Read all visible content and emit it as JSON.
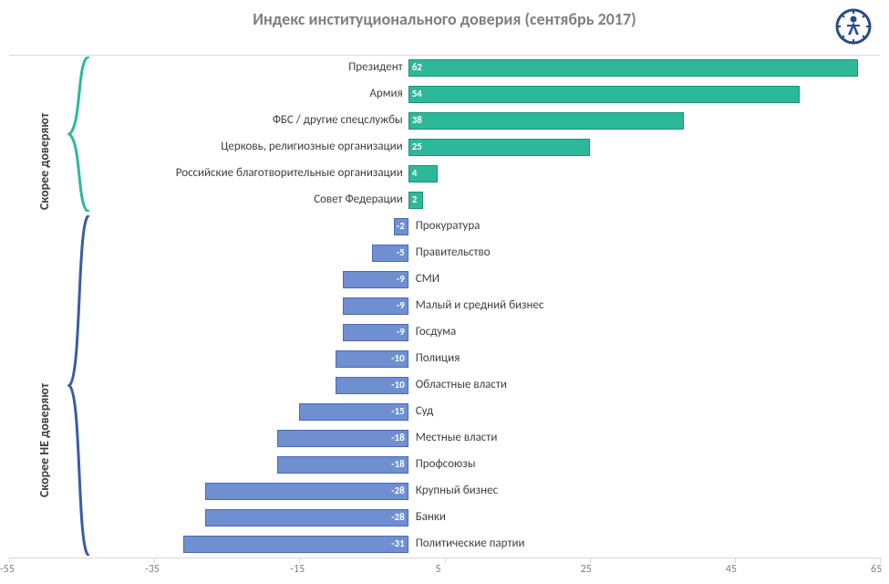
{
  "chart": {
    "type": "bar",
    "title": "Индекс институционального доверия (сентябрь 2017)",
    "title_fontsize": 18,
    "title_color": "#7f7f7f",
    "background_color": "#ffffff",
    "gridline_color": "#d9d9d9",
    "x_axis": {
      "min": -55,
      "max": 65,
      "tick_step": 20,
      "ticks": [
        -55,
        -35,
        -15,
        5,
        25,
        45,
        65
      ],
      "tick_fontsize": 12,
      "tick_color": "#808080"
    },
    "series": {
      "positive": {
        "fill": "#2eb89a",
        "border": "#1f8f77"
      },
      "negative": {
        "fill": "#6f8fd1",
        "border": "#4a6bb0"
      }
    },
    "bar_value_label": {
      "color": "#ffffff",
      "fontsize": 11,
      "fontweight": "bold"
    },
    "category_label": {
      "color": "#404040",
      "fontsize": 13
    },
    "group_labels": {
      "positive": "Скорее доверяют",
      "negative": "Скорее НЕ доверяют"
    },
    "brace_colors": {
      "positive": "#2eb89a",
      "negative": "#3b5ba5"
    },
    "data": [
      {
        "label": "Президент",
        "value": 62
      },
      {
        "label": "Армия",
        "value": 54
      },
      {
        "label": "ФБС / другие спецслужбы",
        "value": 38
      },
      {
        "label": "Церковь, религиозные организации",
        "value": 25
      },
      {
        "label": "Российские благотворительные организации",
        "value": 4
      },
      {
        "label": "Совет Федерации",
        "value": 2
      },
      {
        "label": "Прокуратура",
        "value": -2
      },
      {
        "label": "Правительство",
        "value": -5
      },
      {
        "label": "СМИ",
        "value": -9
      },
      {
        "label": "Малый и средний бизнес",
        "value": -9
      },
      {
        "label": "Госдума",
        "value": -9
      },
      {
        "label": "Полиция",
        "value": -10
      },
      {
        "label": "Областные власти",
        "value": -10
      },
      {
        "label": "Суд",
        "value": -15
      },
      {
        "label": "Местные власти",
        "value": -18
      },
      {
        "label": "Профсоюзы",
        "value": -18
      },
      {
        "label": "Крупный бизнес",
        "value": -28
      },
      {
        "label": "Банки",
        "value": -28
      },
      {
        "label": "Политические партии",
        "value": -31
      }
    ]
  }
}
